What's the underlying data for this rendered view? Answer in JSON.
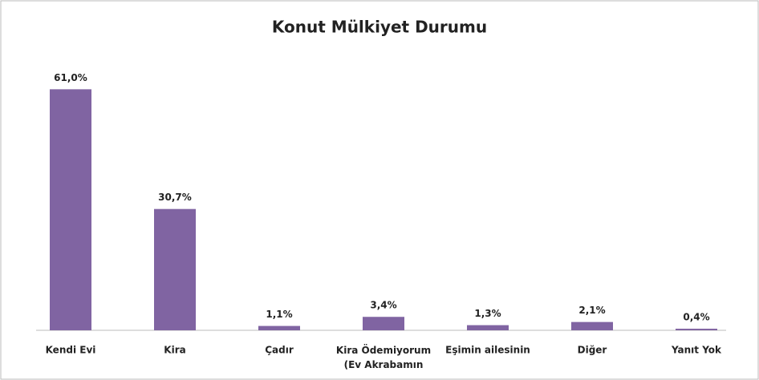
{
  "chart_data": {
    "type": "bar",
    "title": "Konut Mülkiyet Durumu",
    "categories": [
      "Kendi Evi",
      "Kira",
      "Çadır",
      "Kira Ödemiyorum\n(Ev Akrabamın",
      "Eşimin ailesinin",
      "Diğer",
      "Yanıt Yok"
    ],
    "values": [
      61.0,
      30.7,
      1.1,
      3.4,
      1.3,
      2.1,
      0.4
    ],
    "value_labels": [
      "61,0%",
      "30,7%",
      "1,1%",
      "3,4%",
      "1,3%",
      "2,1%",
      "0,4%"
    ],
    "color": "#8064a2",
    "ylim": [
      0,
      70
    ]
  }
}
